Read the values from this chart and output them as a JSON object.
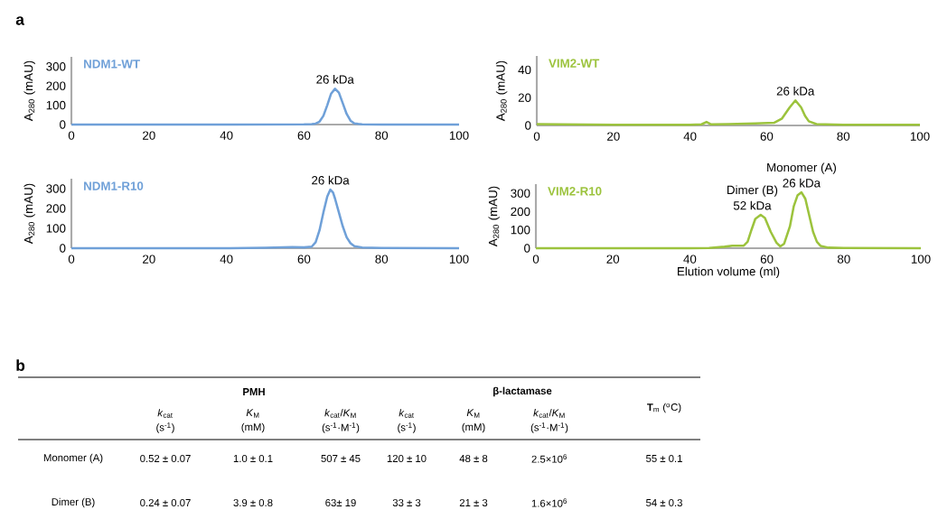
{
  "chart_data": [
    {
      "type": "line",
      "xlim": [
        0,
        100
      ],
      "ylim": [
        0,
        350
      ],
      "xticks": [
        0,
        20,
        40,
        60,
        80,
        100
      ],
      "yticks": [
        0,
        100,
        200,
        300
      ],
      "ylabel": "A$_{280}$ (mAU)",
      "series": [
        {
          "name": "NDM1-WT",
          "color": "#6fa0d8",
          "x": [
            0,
            40,
            60,
            62,
            63,
            64,
            65,
            66,
            67,
            68,
            69,
            70,
            71,
            72,
            73,
            74,
            75,
            80,
            100
          ],
          "values": [
            0,
            0,
            1,
            2,
            5,
            15,
            45,
            100,
            160,
            185,
            165,
            110,
            55,
            20,
            6,
            3,
            1,
            0,
            0
          ]
        }
      ],
      "annotations": [
        "a",
        {
          "text": "26 kDa",
          "x": 68,
          "y": 185
        }
      ]
    },
    {
      "type": "line",
      "xlim": [
        0,
        100
      ],
      "ylim": [
        0,
        350
      ],
      "xticks": [
        0,
        20,
        40,
        60,
        80,
        100
      ],
      "yticks": [
        0,
        100,
        200,
        300
      ],
      "ylabel": "A$_{280}$ (mAU)",
      "series": [
        {
          "name": "NDM1-R10",
          "color": "#6fa0d8",
          "x": [
            0,
            40,
            50,
            57,
            60,
            62,
            63,
            64,
            65,
            66,
            66.8,
            67.5,
            68,
            69,
            70,
            71,
            72,
            73,
            75,
            80,
            100
          ],
          "values": [
            0,
            0,
            2,
            6,
            4,
            8,
            30,
            90,
            180,
            260,
            295,
            280,
            250,
            180,
            110,
            55,
            25,
            10,
            3,
            1,
            0
          ]
        }
      ],
      "annotations": [
        {
          "text": "26 kDa",
          "x": 66.8,
          "y": 295
        }
      ]
    },
    {
      "type": "line",
      "xlim": [
        0,
        100
      ],
      "ylim": [
        0,
        50
      ],
      "xticks": [
        0,
        20,
        40,
        60,
        80,
        100
      ],
      "yticks": [
        0,
        20,
        40
      ],
      "ylabel": "A$_{280}$ (mAU)",
      "series": [
        {
          "name": "VIM2-WT",
          "color": "#9cc33d",
          "x": [
            0,
            20,
            40,
            43,
            44.3,
            45.5,
            50,
            57,
            62,
            64,
            66,
            67.5,
            69,
            70,
            71,
            73,
            80,
            100
          ],
          "values": [
            1,
            0.5,
            0.5,
            0.8,
            2.5,
            0.8,
            1,
            1.5,
            2,
            5,
            13,
            18,
            13,
            7,
            3,
            1,
            0.5,
            0.5
          ]
        }
      ],
      "annotations": [
        {
          "text": "26 kDa",
          "x": 67.5,
          "y": 18
        }
      ]
    },
    {
      "type": "line",
      "xlim": [
        0,
        100
      ],
      "ylim": [
        0,
        350
      ],
      "xticks": [
        0,
        20,
        40,
        60,
        80,
        100
      ],
      "yticks": [
        0,
        100,
        200,
        300
      ],
      "ylabel": "A$_{280}$ (mAU)",
      "xlabel": "Elution volume (ml)",
      "series": [
        {
          "name": "VIM2-R10",
          "color": "#9cc33d",
          "x": [
            0,
            40,
            45,
            49,
            51,
            54,
            55,
            56,
            57,
            58.4,
            59.5,
            61,
            62.5,
            63.5,
            64.5,
            66,
            67,
            68,
            69,
            70,
            71,
            72,
            73,
            74,
            76,
            80,
            100
          ],
          "values": [
            0,
            0,
            1,
            8,
            14,
            14,
            35,
            100,
            160,
            182,
            165,
            90,
            30,
            10,
            25,
            120,
            230,
            290,
            305,
            270,
            180,
            90,
            35,
            12,
            3,
            1,
            0
          ]
        }
      ],
      "annotations": [
        {
          "text": "Dimer (B)",
          "x": 58.4,
          "y": 182
        },
        {
          "text": "52 kDa",
          "x": 58.4,
          "y": 182
        },
        {
          "text": "Monomer (A)",
          "x": 69,
          "y": 305
        },
        {
          "text": "26 kDa",
          "x": 69,
          "y": 305
        }
      ]
    },
    {
      "type": "other",
      "annotations": [
        "b",
        "PMH",
        "β-lactamase",
        "*k*$_{cat}$",
        "*K*$_{M}$",
        "*k*$_{cat}$/*K*$_{M}$",
        "*k*$_{cat}$",
        "*K*$_{M}$",
        "*k*$_{cat}$/*K*$_{M}$",
        "**T**$_{m}$ ($^{o}$C)",
        "(s$^{-1}$)",
        "(mM)",
        "(s$^{-1}$·M$^{-1}$)",
        "(s$^{-1}$)",
        "(mM)",
        "(s$^{-1}$·M$^{-1}$)",
        "Monomer (A)",
        "0.52 ± 0.07",
        "1.0 ± 0.1",
        "507 ± 45",
        "120 ± 10",
        "48 ± 8",
        "2.5×10$^{6}$",
        "55 ± 0.1",
        "Dimer (B)",
        "0.24 ± 0.07",
        "3.9 ± 0.8",
        "63± 19",
        "33 ± 3",
        "21 ± 3",
        "1.6×10$^{6}$",
        "54 ± 0.3"
      ]
    }
  ]
}
